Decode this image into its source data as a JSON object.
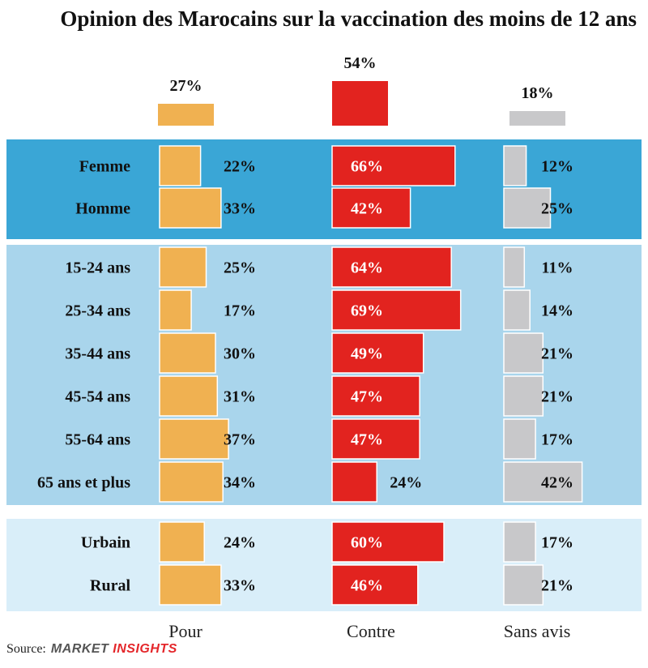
{
  "title": "Opinion des Marocains sur la vaccination des moins de 12 ans",
  "source_label": "Source:",
  "brand": {
    "part1": "MARKET",
    "part2": "INSIGHTS"
  },
  "colors": {
    "pour": "#f0b151",
    "contre": "#e2231f",
    "sans_avis": "#c8c8ca",
    "band_gender": "#3aa6d6",
    "band_age": "#a9d5ec",
    "band_area": "#d9eef9"
  },
  "chart_data": {
    "type": "bar",
    "title": "Opinion des Marocains sur la vaccination des moins de 12 ans",
    "series_labels": [
      "Pour",
      "Contre",
      "Sans avis"
    ],
    "overall": [
      {
        "name": "Pour",
        "value": 27,
        "label": "27%"
      },
      {
        "name": "Contre",
        "value": 54,
        "label": "54%"
      },
      {
        "name": "Sans avis",
        "value": 18,
        "label": "18%"
      }
    ],
    "groups": [
      {
        "band": "gender",
        "rows": [
          {
            "category": "Femme",
            "values": [
              22,
              66,
              12
            ],
            "labels": [
              "22%",
              "66%",
              "12%"
            ]
          },
          {
            "category": "Homme",
            "values": [
              33,
              42,
              25
            ],
            "labels": [
              "33%",
              "42%",
              "25%"
            ]
          }
        ]
      },
      {
        "band": "age",
        "rows": [
          {
            "category": "15-24 ans",
            "values": [
              25,
              64,
              11
            ],
            "labels": [
              "25%",
              "64%",
              "11%"
            ]
          },
          {
            "category": "25-34 ans",
            "values": [
              17,
              69,
              14
            ],
            "labels": [
              "17%",
              "69%",
              "14%"
            ]
          },
          {
            "category": "35-44 ans",
            "values": [
              30,
              49,
              21
            ],
            "labels": [
              "30%",
              "49%",
              "21%"
            ]
          },
          {
            "category": "45-54 ans",
            "values": [
              31,
              47,
              21
            ],
            "labels": [
              "31%",
              "47%",
              "21%"
            ]
          },
          {
            "category": "55-64 ans",
            "values": [
              37,
              47,
              17
            ],
            "labels": [
              "37%",
              "47%",
              "17%"
            ]
          },
          {
            "category": "65 ans et plus",
            "values": [
              34,
              24,
              42
            ],
            "labels": [
              "34%",
              "24%",
              "42%"
            ]
          }
        ]
      },
      {
        "band": "area",
        "rows": [
          {
            "category": "Urbain",
            "values": [
              24,
              60,
              17
            ],
            "labels": [
              "24%",
              "60%",
              "17%"
            ]
          },
          {
            "category": "Rural",
            "values": [
              33,
              46,
              21
            ],
            "labels": [
              "33%",
              "46%",
              "21%"
            ]
          }
        ]
      }
    ]
  }
}
